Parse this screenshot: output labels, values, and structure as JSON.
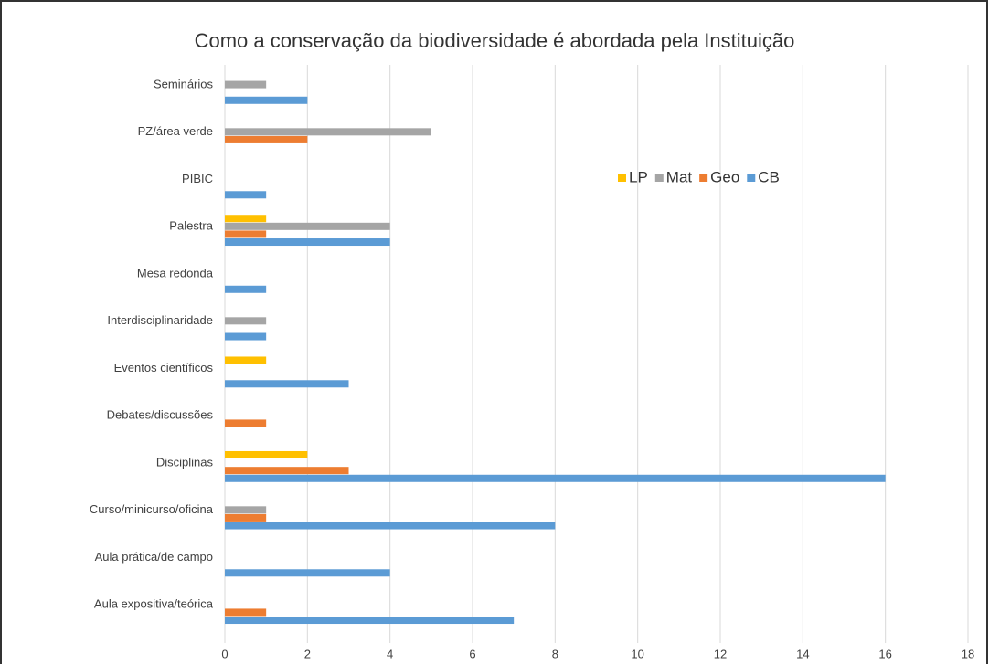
{
  "chart_data": {
    "type": "hbar",
    "title": "Como a conservação da biodiversidade é abordada pela Instituição",
    "categories": [
      "Aula expositiva/teórica",
      "Aula prática/de campo",
      "Curso/minicurso/oficina",
      "Disciplinas",
      "Debates/discussões",
      "Eventos científicos",
      "Interdisciplinaridade",
      "Mesa redonda",
      "Palestra",
      "PIBIC",
      "PZ/área verde",
      "Seminários"
    ],
    "series": [
      {
        "name": "LP",
        "color": "#ffc000",
        "values": [
          0,
          0,
          0,
          2,
          0,
          1,
          0,
          0,
          1,
          0,
          0,
          0
        ]
      },
      {
        "name": "Mat",
        "color": "#a5a5a5",
        "values": [
          0,
          0,
          1,
          0,
          0,
          0,
          1,
          0,
          4,
          0,
          5,
          1
        ]
      },
      {
        "name": "Geo",
        "color": "#ed7d31",
        "values": [
          1,
          0,
          1,
          3,
          1,
          0,
          0,
          0,
          1,
          0,
          2,
          0
        ]
      },
      {
        "name": "CB",
        "color": "#5b9bd5",
        "values": [
          7,
          4,
          8,
          16,
          0,
          3,
          1,
          1,
          4,
          1,
          0,
          2
        ]
      }
    ],
    "xlim": [
      0,
      18
    ],
    "xticks": [
      0,
      2,
      4,
      6,
      8,
      10,
      12,
      14,
      16,
      18
    ],
    "grid": true,
    "legend_position": "upper right"
  }
}
